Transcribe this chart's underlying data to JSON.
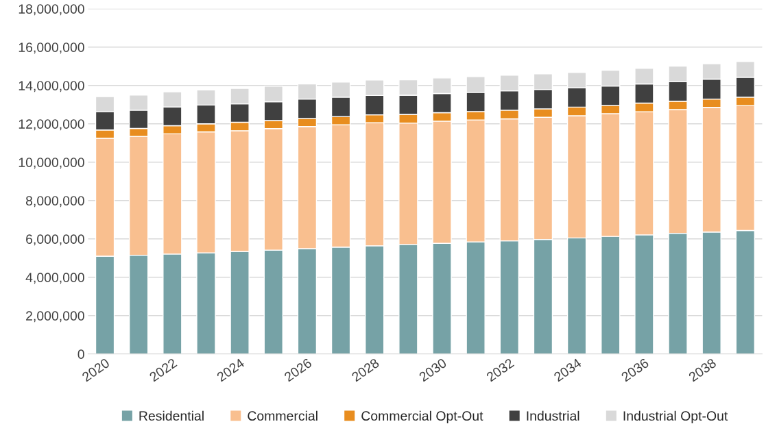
{
  "chart_data": {
    "type": "bar",
    "stacked": true,
    "categories": [
      "2020",
      null,
      "2022",
      null,
      "2024",
      null,
      "2026",
      null,
      "2028",
      null,
      "2030",
      null,
      "2032",
      null,
      "2034",
      null,
      "2036",
      null,
      "2038",
      null
    ],
    "series": [
      {
        "name": "Residential",
        "color": "#76a2a6",
        "values": [
          5100000,
          5150000,
          5210000,
          5270000,
          5340000,
          5410000,
          5490000,
          5570000,
          5640000,
          5710000,
          5770000,
          5840000,
          5900000,
          5970000,
          6050000,
          6130000,
          6210000,
          6290000,
          6360000,
          6440000
        ]
      },
      {
        "name": "Commercial",
        "color": "#f9bf8f",
        "values": [
          6150000,
          6190000,
          6270000,
          6310000,
          6300000,
          6340000,
          6370000,
          6380000,
          6420000,
          6330000,
          6370000,
          6360000,
          6360000,
          6370000,
          6370000,
          6400000,
          6420000,
          6450000,
          6500000,
          6510000
        ]
      },
      {
        "name": "Commercial Opt-Out",
        "color": "#e88d1f",
        "values": [
          430000,
          420000,
          420000,
          420000,
          440000,
          420000,
          420000,
          430000,
          410000,
          450000,
          440000,
          440000,
          450000,
          440000,
          450000,
          430000,
          450000,
          440000,
          430000,
          440000
        ]
      },
      {
        "name": "Industrial",
        "color": "#404040",
        "values": [
          960000,
          950000,
          980000,
          980000,
          960000,
          980000,
          1010000,
          1010000,
          1010000,
          1000000,
          1000000,
          1000000,
          1010000,
          1010000,
          1010000,
          1010000,
          1000000,
          1020000,
          1040000,
          1040000
        ]
      },
      {
        "name": "Industrial Opt-Out",
        "color": "#d9d9d9",
        "values": [
          780000,
          790000,
          790000,
          790000,
          810000,
          810000,
          790000,
          790000,
          800000,
          800000,
          810000,
          820000,
          810000,
          820000,
          800000,
          820000,
          810000,
          810000,
          800000,
          820000
        ]
      }
    ],
    "ylim": [
      0,
      18000000
    ],
    "yticks": [
      {
        "value": 0,
        "label": "0"
      },
      {
        "value": 2000000,
        "label": "2,000,000"
      },
      {
        "value": 4000000,
        "label": "4,000,000"
      },
      {
        "value": 6000000,
        "label": "6,000,000"
      },
      {
        "value": 8000000,
        "label": "8,000,000"
      },
      {
        "value": 10000000,
        "label": "10,000,000"
      },
      {
        "value": 12000000,
        "label": "12,000,000"
      },
      {
        "value": 14000000,
        "label": "14,000,000"
      },
      {
        "value": 16000000,
        "label": "16,000,000"
      },
      {
        "value": 18000000,
        "label": "18,000,000"
      }
    ],
    "grid": "y",
    "legend": "bottom"
  }
}
